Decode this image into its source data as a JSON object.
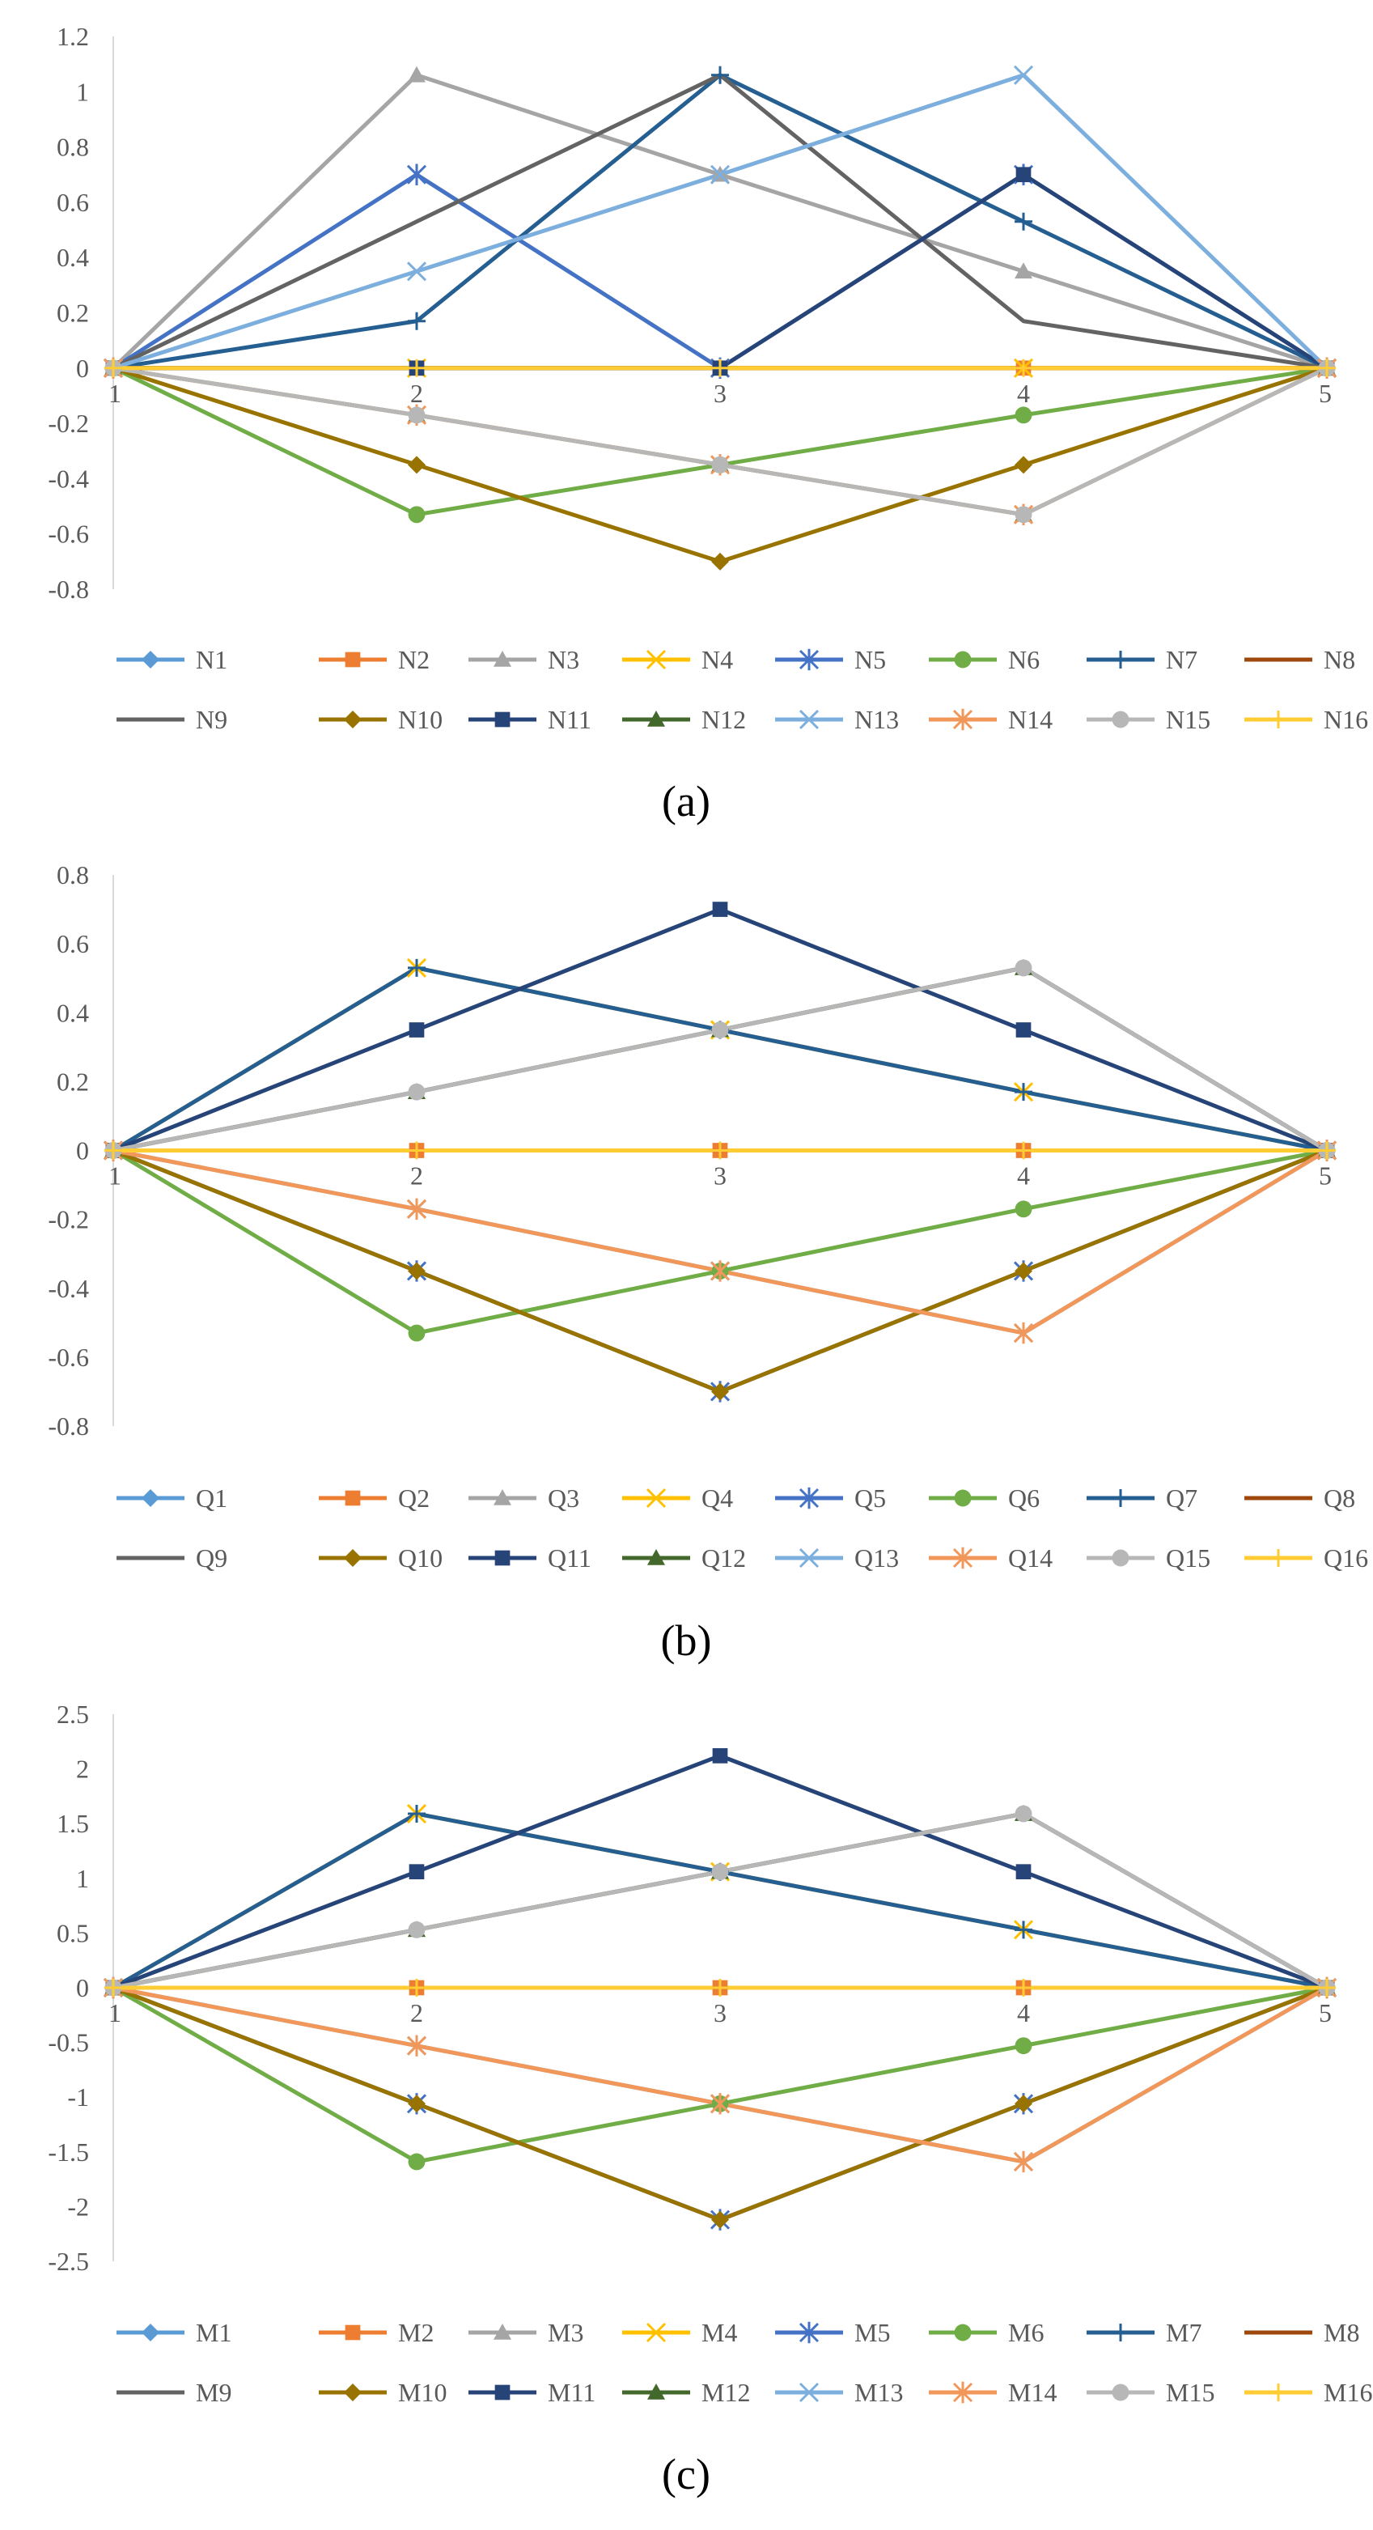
{
  "colors": {
    "s1": "#5B9BD5",
    "s2": "#ED7D31",
    "s3": "#A5A5A5",
    "s4": "#FFC000",
    "s5": "#4472C4",
    "s6": "#70AD47",
    "s7": "#255E91",
    "s8": "#9E480E",
    "s9": "#636363",
    "s10": "#997300",
    "s11": "#264478",
    "s12": "#43682B",
    "s13": "#7CAFDD",
    "s14": "#F1975A",
    "s15": "#B7B7B7",
    "s16": "#FFCD33",
    "axis": "#D9D9D9",
    "text": "#595959"
  },
  "chart_data": [
    {
      "type": "line",
      "caption": "(a)",
      "categories": [
        "1",
        "2",
        "3",
        "4",
        "5"
      ],
      "ylim": [
        -0.8,
        1.2
      ],
      "ytick_labels": [
        "1.2",
        "1",
        "0.8",
        "0.6",
        "0.4",
        "0.2",
        "0",
        "-0.2",
        "-0.4",
        "-0.6",
        "-0.8"
      ],
      "ytick_values": [
        1.2,
        1,
        0.8,
        0.6,
        0.4,
        0.2,
        0,
        -0.2,
        -0.4,
        -0.6,
        -0.8
      ],
      "series": [
        {
          "name": "N1",
          "marker": "diamond",
          "values": [
            0,
            0,
            0,
            0,
            0
          ]
        },
        {
          "name": "N2",
          "marker": "square",
          "values": [
            0,
            0,
            0,
            0,
            0
          ]
        },
        {
          "name": "N3",
          "marker": "triangle",
          "values": [
            0,
            1.06,
            0.7,
            0.35,
            0
          ]
        },
        {
          "name": "N4",
          "marker": "x",
          "values": [
            0,
            0,
            0,
            0,
            0
          ]
        },
        {
          "name": "N5",
          "marker": "star",
          "values": [
            0,
            0.7,
            0,
            0.7,
            0
          ]
        },
        {
          "name": "N6",
          "marker": "circle",
          "values": [
            0,
            -0.53,
            -0.35,
            -0.17,
            0
          ]
        },
        {
          "name": "N7",
          "marker": "plus",
          "values": [
            0,
            0.17,
            1.06,
            0.53,
            0
          ]
        },
        {
          "name": "N8",
          "marker": "none",
          "values": [
            0,
            0,
            0,
            0,
            0
          ]
        },
        {
          "name": "N9",
          "marker": "none",
          "values": [
            0,
            0.53,
            1.06,
            0.17,
            0
          ]
        },
        {
          "name": "N10",
          "marker": "diamond",
          "values": [
            0,
            -0.35,
            -0.7,
            -0.35,
            0
          ]
        },
        {
          "name": "N11",
          "marker": "square",
          "values": [
            0,
            0,
            0,
            0.7,
            0
          ]
        },
        {
          "name": "N12",
          "marker": "triangle",
          "values": [
            0,
            -0.17,
            -0.35,
            -0.53,
            0
          ]
        },
        {
          "name": "N13",
          "marker": "x",
          "values": [
            0,
            0.35,
            0.7,
            1.06,
            0
          ]
        },
        {
          "name": "N14",
          "marker": "star",
          "values": [
            0,
            -0.17,
            -0.35,
            -0.53,
            0
          ]
        },
        {
          "name": "N15",
          "marker": "circle",
          "values": [
            0,
            -0.17,
            -0.35,
            -0.53,
            0
          ]
        },
        {
          "name": "N16",
          "marker": "plus",
          "values": [
            0,
            0,
            0,
            0,
            0
          ]
        }
      ]
    },
    {
      "type": "line",
      "caption": "(b)",
      "categories": [
        "1",
        "2",
        "3",
        "4",
        "5"
      ],
      "ylim": [
        -0.8,
        0.8
      ],
      "ytick_labels": [
        "0.8",
        "0.6",
        "0.4",
        "0.2",
        "0",
        "-0.2",
        "-0.4",
        "-0.6",
        "-0.8"
      ],
      "ytick_values": [
        0.8,
        0.6,
        0.4,
        0.2,
        0,
        -0.2,
        -0.4,
        -0.6,
        -0.8
      ],
      "series": [
        {
          "name": "Q1",
          "marker": "diamond",
          "values": [
            0,
            0,
            0,
            0,
            0
          ]
        },
        {
          "name": "Q2",
          "marker": "square",
          "values": [
            0,
            0,
            0,
            0,
            0
          ]
        },
        {
          "name": "Q3",
          "marker": "triangle",
          "values": [
            0,
            0.17,
            0.35,
            0.53,
            0
          ]
        },
        {
          "name": "Q4",
          "marker": "x",
          "values": [
            0,
            0.53,
            0.35,
            0.17,
            0
          ]
        },
        {
          "name": "Q5",
          "marker": "star",
          "values": [
            0,
            -0.35,
            -0.7,
            -0.35,
            0
          ]
        },
        {
          "name": "Q6",
          "marker": "circle",
          "values": [
            0,
            -0.53,
            -0.35,
            -0.17,
            0
          ]
        },
        {
          "name": "Q7",
          "marker": "plus",
          "values": [
            0,
            0.53,
            0.35,
            0.17,
            0
          ]
        },
        {
          "name": "Q8",
          "marker": "none",
          "values": [
            0,
            0,
            0,
            0,
            0
          ]
        },
        {
          "name": "Q9",
          "marker": "none",
          "values": [
            0,
            0.17,
            0.35,
            0.53,
            0
          ]
        },
        {
          "name": "Q10",
          "marker": "diamond",
          "values": [
            0,
            -0.35,
            -0.7,
            -0.35,
            0
          ]
        },
        {
          "name": "Q11",
          "marker": "square",
          "values": [
            0,
            0.35,
            0.7,
            0.35,
            0
          ]
        },
        {
          "name": "Q12",
          "marker": "triangle",
          "values": [
            0,
            0.17,
            0.35,
            0.53,
            0
          ]
        },
        {
          "name": "Q13",
          "marker": "x",
          "values": [
            0,
            -0.17,
            -0.35,
            -0.53,
            0
          ]
        },
        {
          "name": "Q14",
          "marker": "star",
          "values": [
            0,
            -0.17,
            -0.35,
            -0.53,
            0
          ]
        },
        {
          "name": "Q15",
          "marker": "circle",
          "values": [
            0,
            0.17,
            0.35,
            0.53,
            0
          ]
        },
        {
          "name": "Q16",
          "marker": "plus",
          "values": [
            0,
            0,
            0,
            0,
            0
          ]
        }
      ]
    },
    {
      "type": "line",
      "caption": "(c)",
      "categories": [
        "1",
        "2",
        "3",
        "4",
        "5"
      ],
      "ylim": [
        -2.5,
        2.5
      ],
      "ytick_labels": [
        "2.5",
        "2",
        "1.5",
        "1",
        "0.5",
        "0",
        "-0.5",
        "-1",
        "-1.5",
        "-2",
        "-2.5"
      ],
      "ytick_values": [
        2.5,
        2,
        1.5,
        1,
        0.5,
        0,
        -0.5,
        -1,
        -1.5,
        -2,
        -2.5
      ],
      "series": [
        {
          "name": "M1",
          "marker": "diamond",
          "values": [
            0,
            0,
            0,
            0,
            0
          ]
        },
        {
          "name": "M2",
          "marker": "square",
          "values": [
            0,
            0,
            0,
            0,
            0
          ]
        },
        {
          "name": "M3",
          "marker": "triangle",
          "values": [
            0,
            0.53,
            1.06,
            1.59,
            0
          ]
        },
        {
          "name": "M4",
          "marker": "x",
          "values": [
            0,
            1.59,
            1.06,
            0.53,
            0
          ]
        },
        {
          "name": "M5",
          "marker": "star",
          "values": [
            0,
            -1.06,
            -2.12,
            -1.06,
            0
          ]
        },
        {
          "name": "M6",
          "marker": "circle",
          "values": [
            0,
            -1.59,
            -1.06,
            -0.53,
            0
          ]
        },
        {
          "name": "M7",
          "marker": "plus",
          "values": [
            0,
            1.59,
            1.06,
            0.53,
            0
          ]
        },
        {
          "name": "M8",
          "marker": "none",
          "values": [
            0,
            0,
            0,
            0,
            0
          ]
        },
        {
          "name": "M9",
          "marker": "none",
          "values": [
            0,
            0.53,
            1.06,
            1.59,
            0
          ]
        },
        {
          "name": "M10",
          "marker": "diamond",
          "values": [
            0,
            -1.06,
            -2.12,
            -1.06,
            0
          ]
        },
        {
          "name": "M11",
          "marker": "square",
          "values": [
            0,
            1.06,
            2.12,
            1.06,
            0
          ]
        },
        {
          "name": "M12",
          "marker": "triangle",
          "values": [
            0,
            0.53,
            1.06,
            1.59,
            0
          ]
        },
        {
          "name": "M13",
          "marker": "x",
          "values": [
            0,
            -0.53,
            -1.06,
            -1.59,
            0
          ]
        },
        {
          "name": "M14",
          "marker": "star",
          "values": [
            0,
            -0.53,
            -1.06,
            -1.59,
            0
          ]
        },
        {
          "name": "M15",
          "marker": "circle",
          "values": [
            0,
            0.53,
            1.06,
            1.59,
            0
          ]
        },
        {
          "name": "M16",
          "marker": "plus",
          "values": [
            0,
            0,
            0,
            0,
            0
          ]
        }
      ]
    }
  ]
}
